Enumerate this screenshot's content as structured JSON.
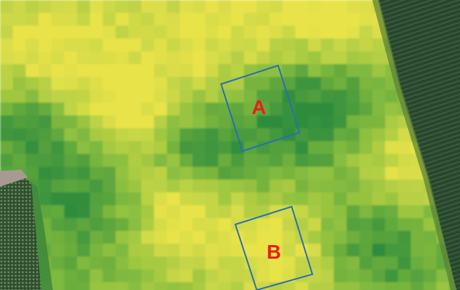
{
  "map": {
    "zones": [
      {
        "label": "A"
      },
      {
        "label": "B"
      }
    ],
    "colors": {
      "label": "#e5201a",
      "outline": "#2a6db5",
      "low": "#2f8d3c",
      "mid": "#8bbf3f",
      "high": "#e8e34a",
      "adjacent_crop": "#27462d",
      "road": "#a79a93"
    }
  }
}
